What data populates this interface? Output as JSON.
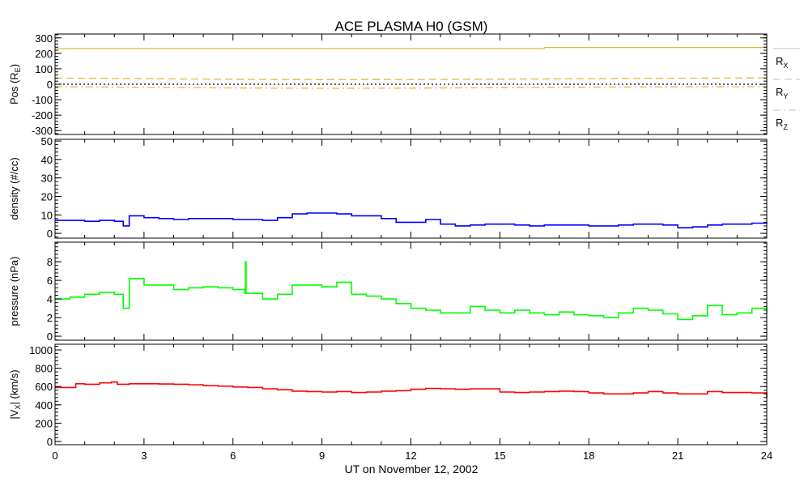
{
  "title": "ACE PLASMA H0 (GSM)",
  "xlabel": "UT on November 12, 2002",
  "colors": {
    "position": "#ffc000",
    "position_gray": "#b0b0b0",
    "density": "#0000ff",
    "pressure": "#00ff00",
    "velocity": "#ff0000",
    "axis": "#000000"
  },
  "chart_data": [
    {
      "type": "line",
      "id": "pos",
      "ylabel": "Pos (R",
      "ylabel_sub": "E",
      "ylabel_end": ")",
      "ylim": [
        -325,
        325
      ],
      "yticks": [
        300,
        200,
        100,
        0,
        -100,
        -200,
        -300
      ],
      "ytick_labels": [
        "300",
        "200",
        "100",
        "0",
        "-100",
        "-200",
        "-300"
      ],
      "legend": [
        {
          "label": "R",
          "sub": "X",
          "style": "solid"
        },
        {
          "label": "R",
          "sub": "Y",
          "style": "dashed"
        },
        {
          "label": "R",
          "sub": "Z",
          "style": "dashdot"
        }
      ],
      "legend_placement": "right",
      "series": [
        {
          "name": "RX",
          "style": "solid",
          "x": [
            0,
            16.5,
            16.5,
            24
          ],
          "y": [
            231,
            231,
            238,
            238
          ]
        },
        {
          "name": "RY",
          "style": "dashed",
          "x": [
            0,
            3,
            6,
            9,
            12,
            15,
            18,
            21,
            24
          ],
          "y": [
            40,
            36,
            32,
            30,
            31,
            33,
            36,
            39,
            41
          ]
        },
        {
          "name": "RZ",
          "style": "dashdot",
          "x": [
            0,
            3,
            6,
            9,
            12,
            15,
            18,
            21,
            24
          ],
          "y": [
            -15,
            -20,
            -24,
            -26,
            -25,
            -22,
            -19,
            -17,
            -15
          ]
        },
        {
          "name": "zero",
          "style": "dotted",
          "x": [
            0,
            24
          ],
          "y": [
            0,
            0
          ]
        }
      ]
    },
    {
      "type": "line",
      "id": "density",
      "ylabel": "density (#/cc)",
      "ylim": [
        -2.6,
        50.9
      ],
      "yticks": [
        0,
        10,
        20,
        30,
        40,
        50
      ],
      "ytick_labels": [
        "0",
        "10",
        "20",
        "30",
        "40",
        "50"
      ],
      "series": [
        {
          "name": "density",
          "x": [
            0,
            0.5,
            1,
            1.5,
            2,
            2.3,
            2.5,
            3,
            3.5,
            4,
            4.5,
            5,
            5.5,
            6,
            6.5,
            7,
            7.5,
            8,
            8.5,
            9,
            9.5,
            10,
            10.5,
            11,
            11.5,
            12,
            12.5,
            13,
            13.5,
            14,
            14.5,
            15,
            15.5,
            16,
            16.5,
            17,
            17.5,
            18,
            18.5,
            19,
            19.5,
            20,
            20.5,
            21,
            21.5,
            22,
            22.5,
            23,
            23.5,
            24
          ],
          "y": [
            7,
            7,
            6.5,
            7,
            6.5,
            4,
            9.5,
            8.5,
            8,
            7.5,
            8,
            8,
            8,
            7.5,
            7.5,
            7,
            8.5,
            10.5,
            11,
            11,
            10.5,
            9.5,
            9.5,
            8,
            6,
            6,
            7.5,
            5,
            4,
            4.5,
            5,
            5,
            4.5,
            4,
            4.5,
            4.5,
            4.5,
            4,
            4,
            4.5,
            5,
            5,
            4.5,
            3,
            3.5,
            4.5,
            5,
            5,
            5.5,
            6
          ]
        }
      ]
    },
    {
      "type": "line",
      "id": "pressure",
      "ylabel": "pressure (nPa)",
      "ylim": [
        -0.43,
        10.1
      ],
      "yticks": [
        0,
        2,
        4,
        6,
        8
      ],
      "ytick_labels": [
        "0",
        "2",
        "4",
        "6",
        "8"
      ],
      "series": [
        {
          "name": "pressure",
          "x": [
            0,
            0.5,
            1,
            1.5,
            2,
            2.3,
            2.5,
            3,
            3.5,
            4,
            4.5,
            5,
            5.5,
            6,
            6.4,
            6.42,
            6.44,
            7,
            7.5,
            8,
            8.5,
            9,
            9.5,
            10,
            10.5,
            11,
            11.5,
            12,
            12.5,
            13,
            13.5,
            14,
            14.5,
            15,
            15.5,
            16,
            16.5,
            17,
            17.5,
            18,
            18.5,
            19,
            19.5,
            20,
            20.5,
            21,
            21.5,
            22,
            22.5,
            23,
            23.5,
            24
          ],
          "y": [
            4,
            4.2,
            4.5,
            4.7,
            4.5,
            3,
            6.2,
            5.5,
            5.5,
            5,
            5.2,
            5.3,
            5.2,
            5,
            4.6,
            8,
            4.6,
            4,
            4.5,
            5.5,
            5.5,
            5.3,
            5.8,
            4.5,
            4.3,
            4,
            3.5,
            3,
            2.8,
            2.5,
            2.5,
            3.2,
            2.8,
            2.5,
            2.8,
            2.5,
            2.3,
            2.6,
            2.3,
            2.2,
            2,
            2.5,
            3,
            2.8,
            2.4,
            1.8,
            2.2,
            3.3,
            2.3,
            2.5,
            3,
            2.5
          ]
        }
      ]
    },
    {
      "type": "line",
      "id": "vx",
      "ylabel": "|V",
      "ylabel_sub": "X",
      "ylabel_end": "| (km/s)",
      "ylim": [
        -35,
        1062
      ],
      "yticks": [
        0,
        200,
        400,
        600,
        800,
        1000
      ],
      "ytick_labels": [
        "0",
        "200",
        "400",
        "600",
        "800",
        "1000"
      ],
      "series": [
        {
          "name": "vx",
          "x": [
            0,
            0.5,
            0.7,
            1,
            1.5,
            1.9,
            2.1,
            2.5,
            3,
            3.5,
            4,
            4.5,
            5,
            5.5,
            6,
            6.5,
            7,
            7.5,
            8,
            8.5,
            9,
            9.5,
            10,
            10.5,
            11,
            11.5,
            12,
            12.5,
            13,
            13.5,
            14,
            14.5,
            15,
            15.5,
            16,
            16.5,
            17,
            17.5,
            18,
            18.5,
            19,
            19.5,
            20,
            20.5,
            21,
            21.5,
            22,
            22.5,
            23,
            23.5,
            24
          ],
          "y": [
            590,
            590,
            630,
            625,
            640,
            650,
            625,
            630,
            630,
            628,
            625,
            620,
            610,
            605,
            595,
            590,
            575,
            565,
            550,
            545,
            540,
            545,
            535,
            540,
            550,
            555,
            570,
            580,
            575,
            570,
            575,
            575,
            540,
            535,
            540,
            545,
            550,
            545,
            530,
            520,
            520,
            530,
            545,
            530,
            520,
            520,
            545,
            535,
            535,
            530,
            480
          ]
        }
      ]
    }
  ],
  "xaxis": {
    "xlim": [
      0,
      24
    ],
    "xticks": [
      0,
      3,
      6,
      9,
      12,
      15,
      18,
      21,
      24
    ],
    "xtick_labels": [
      "0",
      "3",
      "6",
      "9",
      "12",
      "15",
      "18",
      "21",
      "24"
    ]
  }
}
